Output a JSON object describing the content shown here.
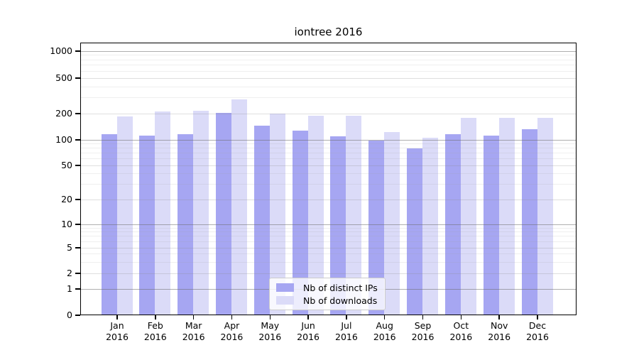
{
  "title": "iontree 2016",
  "chart_data": {
    "type": "bar",
    "title": "iontree 2016",
    "categories": [
      "Jan 2016",
      "Feb 2016",
      "Mar 2016",
      "Apr 2016",
      "May 2016",
      "Jun 2016",
      "Jul 2016",
      "Aug 2016",
      "Sep 2016",
      "Oct 2016",
      "Nov 2016",
      "Dec 2016"
    ],
    "month_labels": [
      "Jan",
      "Feb",
      "Mar",
      "Apr",
      "May",
      "Jun",
      "Jul",
      "Aug",
      "Sep",
      "Oct",
      "Nov",
      "Dec"
    ],
    "year_label": "2016",
    "series": [
      {
        "name": "Nb of distinct IPs",
        "color": "#a6a6f2",
        "values": [
          115,
          110,
          113,
          200,
          143,
          125,
          108,
          97,
          78,
          114,
          110,
          129
        ]
      },
      {
        "name": "Nb of downloads",
        "color": "#dbdbf8",
        "values": [
          183,
          207,
          210,
          285,
          195,
          185,
          184,
          121,
          104,
          176,
          176,
          177
        ]
      }
    ],
    "yscale": "symlog",
    "yticks": [
      0,
      1,
      2,
      5,
      10,
      20,
      50,
      100,
      200,
      500,
      1000
    ],
    "ylim": [
      0,
      1258
    ],
    "grid": true,
    "legend_position": "lower center",
    "background_color": "#ffffff",
    "axis_color": "#000000"
  }
}
